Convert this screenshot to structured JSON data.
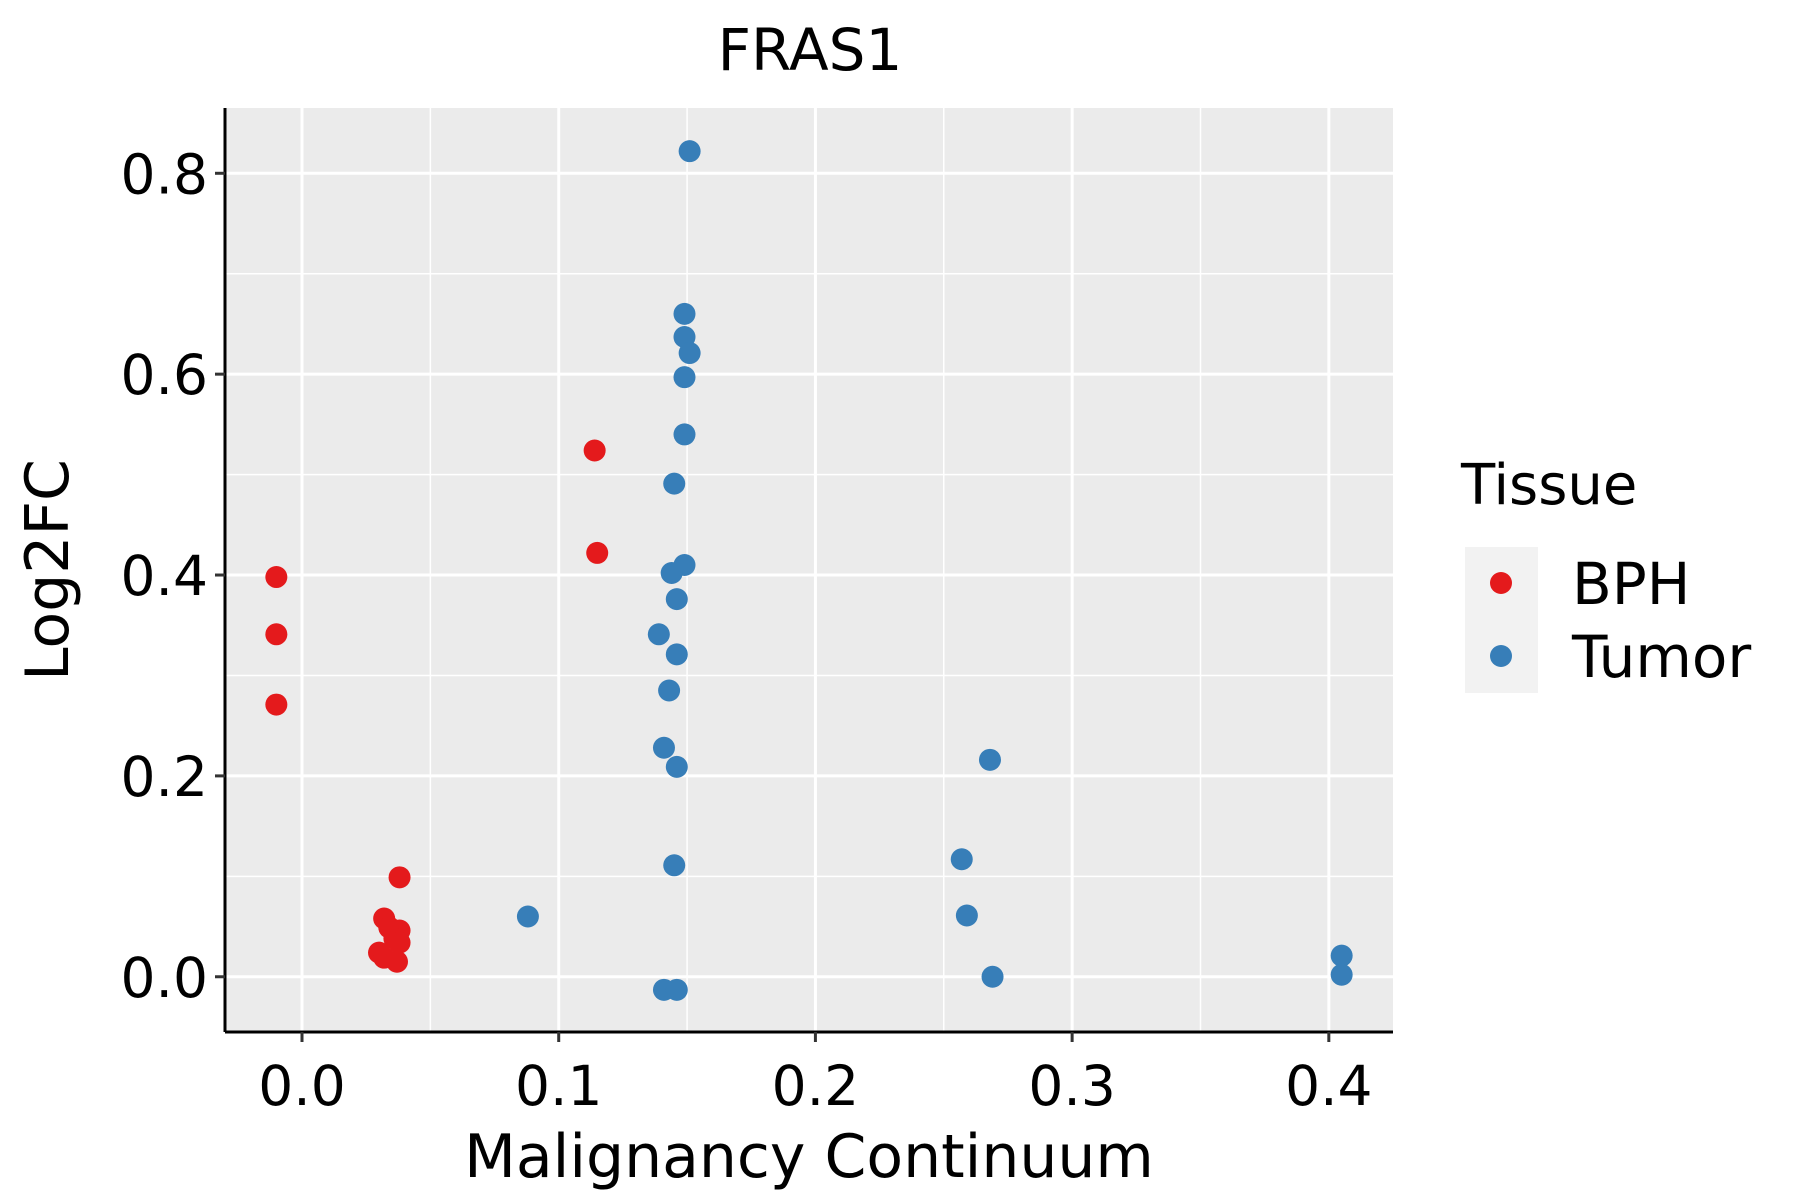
{
  "chart_data": {
    "type": "scatter",
    "title": "FRAS1",
    "xlabel": "Malignancy Continuum",
    "ylabel": "Log2FC",
    "xlim": [
      -0.03,
      0.425
    ],
    "ylim": [
      -0.055,
      0.865
    ],
    "x_ticks": [
      0.0,
      0.1,
      0.2,
      0.3,
      0.4
    ],
    "x_tick_labels": [
      "0.0",
      "0.1",
      "0.2",
      "0.3",
      "0.4"
    ],
    "y_ticks": [
      0.0,
      0.2,
      0.4,
      0.6,
      0.8
    ],
    "y_tick_labels": [
      "0.0",
      "0.2",
      "0.4",
      "0.6",
      "0.8"
    ],
    "x_minor_grid": [
      0.05,
      0.15,
      0.25,
      0.35
    ],
    "y_minor_grid": [
      0.1,
      0.3,
      0.5,
      0.7
    ],
    "grid": true,
    "background": "#EBEBEB",
    "legend_position": "right",
    "legend": {
      "title": "Tissue",
      "entries": [
        {
          "label": "BPH",
          "color": "#E41A1C"
        },
        {
          "label": "Tumor",
          "color": "#377EB8"
        }
      ]
    },
    "series": [
      {
        "name": "BPH",
        "color": "#E41A1C",
        "points": [
          {
            "x": -0.01,
            "y": 0.398
          },
          {
            "x": -0.01,
            "y": 0.341
          },
          {
            "x": -0.01,
            "y": 0.271
          },
          {
            "x": 0.038,
            "y": 0.099
          },
          {
            "x": 0.032,
            "y": 0.058
          },
          {
            "x": 0.034,
            "y": 0.049
          },
          {
            "x": 0.038,
            "y": 0.046
          },
          {
            "x": 0.036,
            "y": 0.038
          },
          {
            "x": 0.038,
            "y": 0.034
          },
          {
            "x": 0.03,
            "y": 0.024
          },
          {
            "x": 0.032,
            "y": 0.019
          },
          {
            "x": 0.037,
            "y": 0.015
          },
          {
            "x": 0.114,
            "y": 0.524
          },
          {
            "x": 0.115,
            "y": 0.422
          }
        ]
      },
      {
        "name": "Tumor",
        "color": "#377EB8",
        "points": [
          {
            "x": 0.151,
            "y": 0.822
          },
          {
            "x": 0.149,
            "y": 0.66
          },
          {
            "x": 0.149,
            "y": 0.637
          },
          {
            "x": 0.151,
            "y": 0.621
          },
          {
            "x": 0.149,
            "y": 0.597
          },
          {
            "x": 0.149,
            "y": 0.54
          },
          {
            "x": 0.145,
            "y": 0.491
          },
          {
            "x": 0.149,
            "y": 0.41
          },
          {
            "x": 0.144,
            "y": 0.402
          },
          {
            "x": 0.146,
            "y": 0.376
          },
          {
            "x": 0.139,
            "y": 0.341
          },
          {
            "x": 0.146,
            "y": 0.321
          },
          {
            "x": 0.143,
            "y": 0.285
          },
          {
            "x": 0.141,
            "y": 0.228
          },
          {
            "x": 0.146,
            "y": 0.209
          },
          {
            "x": 0.145,
            "y": 0.111
          },
          {
            "x": 0.088,
            "y": 0.06
          },
          {
            "x": 0.141,
            "y": -0.013
          },
          {
            "x": 0.146,
            "y": -0.013
          },
          {
            "x": 0.268,
            "y": 0.216
          },
          {
            "x": 0.257,
            "y": 0.117
          },
          {
            "x": 0.259,
            "y": 0.061
          },
          {
            "x": 0.269,
            "y": 0.0
          },
          {
            "x": 0.405,
            "y": 0.021
          },
          {
            "x": 0.405,
            "y": 0.002
          }
        ]
      }
    ]
  }
}
